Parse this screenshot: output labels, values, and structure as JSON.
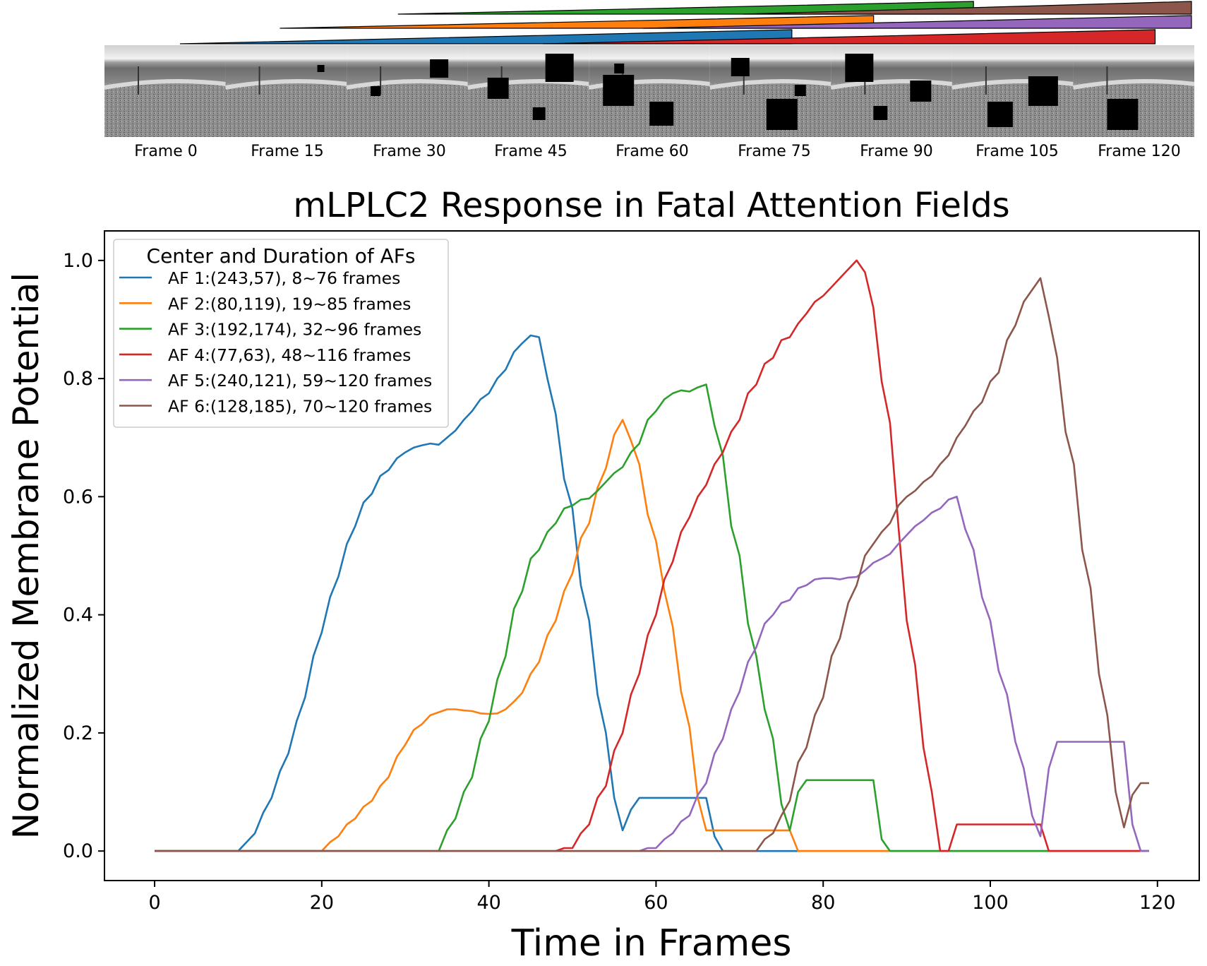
{
  "frames_strip": {
    "labels": [
      "Frame 0",
      "Frame 15",
      "Frame 30",
      "Frame 45",
      "Frame 60",
      "Frame 75",
      "Frame 90",
      "Frame 105",
      "Frame 120"
    ]
  },
  "chart_data": {
    "type": "line",
    "title": "mLPLC2 Response in Fatal Attention Fields",
    "xlabel": "Time in Frames",
    "ylabel": "Normalized Membrane Potential",
    "xlim": [
      -6,
      125
    ],
    "ylim": [
      -0.05,
      1.05
    ],
    "xticks": [
      0,
      20,
      40,
      60,
      80,
      100,
      120
    ],
    "yticks": [
      0.0,
      0.2,
      0.4,
      0.6,
      0.8,
      1.0
    ],
    "xtick_labels": [
      "0",
      "20",
      "40",
      "60",
      "80",
      "100",
      "120"
    ],
    "ytick_labels": [
      "0.0",
      "0.2",
      "0.4",
      "0.6",
      "0.8",
      "1.0"
    ],
    "legend": {
      "title": "Center and Duration of AFs",
      "position": "upper-left"
    },
    "series": [
      {
        "name": "AF 1:(243,57), 8~76 frames",
        "color": "#1f77b4",
        "points": [
          [
            0,
            0
          ],
          [
            10,
            0
          ],
          [
            11,
            0.015
          ],
          [
            12,
            0.03
          ],
          [
            13,
            0.065
          ],
          [
            14,
            0.09
          ],
          [
            15,
            0.135
          ],
          [
            16,
            0.165
          ],
          [
            17,
            0.22
          ],
          [
            18,
            0.26
          ],
          [
            19,
            0.33
          ],
          [
            20,
            0.37
          ],
          [
            21,
            0.43
          ],
          [
            22,
            0.465
          ],
          [
            23,
            0.52
          ],
          [
            24,
            0.55
          ],
          [
            25,
            0.59
          ],
          [
            26,
            0.605
          ],
          [
            27,
            0.635
          ],
          [
            28,
            0.645
          ],
          [
            29,
            0.665
          ],
          [
            30,
            0.675
          ],
          [
            31,
            0.683
          ],
          [
            32,
            0.687
          ],
          [
            33,
            0.69
          ],
          [
            34,
            0.688
          ],
          [
            35,
            0.7
          ],
          [
            36,
            0.712
          ],
          [
            37,
            0.73
          ],
          [
            38,
            0.745
          ],
          [
            39,
            0.765
          ],
          [
            40,
            0.775
          ],
          [
            41,
            0.8
          ],
          [
            42,
            0.815
          ],
          [
            43,
            0.845
          ],
          [
            44,
            0.86
          ],
          [
            45,
            0.873
          ],
          [
            46,
            0.87
          ],
          [
            47,
            0.8
          ],
          [
            48,
            0.74
          ],
          [
            49,
            0.63
          ],
          [
            50,
            0.58
          ],
          [
            51,
            0.45
          ],
          [
            52,
            0.39
          ],
          [
            53,
            0.265
          ],
          [
            54,
            0.2
          ],
          [
            55,
            0.09
          ],
          [
            56,
            0.035
          ],
          [
            57,
            0.07
          ],
          [
            58,
            0.09
          ],
          [
            66,
            0.09
          ],
          [
            67,
            0.025
          ],
          [
            68,
            0
          ],
          [
            119,
            0
          ]
        ]
      },
      {
        "name": "AF 2:(80,119), 19~85 frames",
        "color": "#ff7f0e",
        "points": [
          [
            0,
            0
          ],
          [
            20,
            0
          ],
          [
            21,
            0.015
          ],
          [
            22,
            0.025
          ],
          [
            23,
            0.045
          ],
          [
            24,
            0.055
          ],
          [
            25,
            0.075
          ],
          [
            26,
            0.085
          ],
          [
            27,
            0.11
          ],
          [
            28,
            0.125
          ],
          [
            29,
            0.16
          ],
          [
            30,
            0.18
          ],
          [
            31,
            0.205
          ],
          [
            32,
            0.215
          ],
          [
            33,
            0.23
          ],
          [
            34,
            0.235
          ],
          [
            35,
            0.24
          ],
          [
            36,
            0.24
          ],
          [
            37,
            0.238
          ],
          [
            38,
            0.237
          ],
          [
            39,
            0.233
          ],
          [
            40,
            0.232
          ],
          [
            41,
            0.233
          ],
          [
            42,
            0.24
          ],
          [
            43,
            0.253
          ],
          [
            44,
            0.268
          ],
          [
            45,
            0.3
          ],
          [
            46,
            0.32
          ],
          [
            47,
            0.365
          ],
          [
            48,
            0.39
          ],
          [
            49,
            0.44
          ],
          [
            50,
            0.47
          ],
          [
            51,
            0.53
          ],
          [
            52,
            0.555
          ],
          [
            53,
            0.615
          ],
          [
            54,
            0.648
          ],
          [
            55,
            0.705
          ],
          [
            56,
            0.73
          ],
          [
            57,
            0.695
          ],
          [
            58,
            0.655
          ],
          [
            59,
            0.57
          ],
          [
            60,
            0.525
          ],
          [
            61,
            0.44
          ],
          [
            62,
            0.38
          ],
          [
            63,
            0.27
          ],
          [
            64,
            0.21
          ],
          [
            65,
            0.09
          ],
          [
            66,
            0.035
          ],
          [
            76,
            0.035
          ],
          [
            77,
            0
          ],
          [
            119,
            0
          ]
        ]
      },
      {
        "name": "AF 3:(192,174), 32~96 frames",
        "color": "#2ca02c",
        "points": [
          [
            0,
            0
          ],
          [
            34,
            0
          ],
          [
            35,
            0.035
          ],
          [
            36,
            0.055
          ],
          [
            37,
            0.1
          ],
          [
            38,
            0.125
          ],
          [
            39,
            0.19
          ],
          [
            40,
            0.22
          ],
          [
            41,
            0.29
          ],
          [
            42,
            0.33
          ],
          [
            43,
            0.41
          ],
          [
            44,
            0.44
          ],
          [
            45,
            0.495
          ],
          [
            46,
            0.51
          ],
          [
            47,
            0.54
          ],
          [
            48,
            0.555
          ],
          [
            49,
            0.58
          ],
          [
            50,
            0.585
          ],
          [
            51,
            0.595
          ],
          [
            52,
            0.597
          ],
          [
            53,
            0.61
          ],
          [
            54,
            0.625
          ],
          [
            55,
            0.64
          ],
          [
            56,
            0.65
          ],
          [
            57,
            0.675
          ],
          [
            58,
            0.69
          ],
          [
            59,
            0.73
          ],
          [
            60,
            0.745
          ],
          [
            61,
            0.765
          ],
          [
            62,
            0.775
          ],
          [
            63,
            0.78
          ],
          [
            64,
            0.778
          ],
          [
            65,
            0.785
          ],
          [
            66,
            0.79
          ],
          [
            67,
            0.72
          ],
          [
            68,
            0.67
          ],
          [
            69,
            0.55
          ],
          [
            70,
            0.5
          ],
          [
            71,
            0.385
          ],
          [
            72,
            0.33
          ],
          [
            73,
            0.24
          ],
          [
            74,
            0.19
          ],
          [
            75,
            0.08
          ],
          [
            76,
            0.035
          ],
          [
            77,
            0.1
          ],
          [
            78,
            0.12
          ],
          [
            86,
            0.12
          ],
          [
            87,
            0.02
          ],
          [
            88,
            0
          ],
          [
            119,
            0
          ]
        ]
      },
      {
        "name": "AF 4:(77,63), 48~116 frames",
        "color": "#d62728",
        "points": [
          [
            0,
            0
          ],
          [
            48,
            0
          ],
          [
            49,
            0.005
          ],
          [
            50,
            0.005
          ],
          [
            51,
            0.03
          ],
          [
            52,
            0.045
          ],
          [
            53,
            0.09
          ],
          [
            54,
            0.11
          ],
          [
            55,
            0.17
          ],
          [
            56,
            0.2
          ],
          [
            57,
            0.265
          ],
          [
            58,
            0.3
          ],
          [
            59,
            0.365
          ],
          [
            60,
            0.4
          ],
          [
            61,
            0.46
          ],
          [
            62,
            0.49
          ],
          [
            63,
            0.54
          ],
          [
            64,
            0.565
          ],
          [
            65,
            0.6
          ],
          [
            66,
            0.62
          ],
          [
            67,
            0.655
          ],
          [
            68,
            0.675
          ],
          [
            69,
            0.71
          ],
          [
            70,
            0.73
          ],
          [
            71,
            0.775
          ],
          [
            72,
            0.79
          ],
          [
            73,
            0.825
          ],
          [
            74,
            0.835
          ],
          [
            75,
            0.865
          ],
          [
            76,
            0.87
          ],
          [
            77,
            0.893
          ],
          [
            78,
            0.91
          ],
          [
            79,
            0.93
          ],
          [
            80,
            0.94
          ],
          [
            81,
            0.955
          ],
          [
            82,
            0.97
          ],
          [
            83,
            0.985
          ],
          [
            84,
            1.0
          ],
          [
            85,
            0.98
          ],
          [
            86,
            0.92
          ],
          [
            87,
            0.795
          ],
          [
            88,
            0.725
          ],
          [
            89,
            0.55
          ],
          [
            90,
            0.39
          ],
          [
            91,
            0.315
          ],
          [
            92,
            0.175
          ],
          [
            93,
            0.1
          ],
          [
            94,
            0
          ],
          [
            95,
            0
          ],
          [
            96,
            0.045
          ],
          [
            106,
            0.045
          ],
          [
            107,
            0
          ],
          [
            119,
            0
          ]
        ]
      },
      {
        "name": "AF 5:(240,121), 59~120 frames",
        "color": "#9467bd",
        "points": [
          [
            0,
            0
          ],
          [
            58,
            0
          ],
          [
            59,
            0.005
          ],
          [
            60,
            0.005
          ],
          [
            61,
            0.02
          ],
          [
            62,
            0.03
          ],
          [
            63,
            0.05
          ],
          [
            64,
            0.06
          ],
          [
            65,
            0.095
          ],
          [
            66,
            0.115
          ],
          [
            67,
            0.165
          ],
          [
            68,
            0.19
          ],
          [
            69,
            0.24
          ],
          [
            70,
            0.27
          ],
          [
            71,
            0.32
          ],
          [
            72,
            0.345
          ],
          [
            73,
            0.385
          ],
          [
            74,
            0.4
          ],
          [
            75,
            0.42
          ],
          [
            76,
            0.425
          ],
          [
            77,
            0.445
          ],
          [
            78,
            0.45
          ],
          [
            79,
            0.46
          ],
          [
            80,
            0.462
          ],
          [
            81,
            0.462
          ],
          [
            82,
            0.46
          ],
          [
            83,
            0.463
          ],
          [
            84,
            0.464
          ],
          [
            85,
            0.475
          ],
          [
            86,
            0.488
          ],
          [
            87,
            0.495
          ],
          [
            88,
            0.503
          ],
          [
            89,
            0.52
          ],
          [
            90,
            0.535
          ],
          [
            91,
            0.55
          ],
          [
            92,
            0.56
          ],
          [
            93,
            0.573
          ],
          [
            94,
            0.58
          ],
          [
            95,
            0.595
          ],
          [
            96,
            0.6
          ],
          [
            97,
            0.545
          ],
          [
            98,
            0.51
          ],
          [
            99,
            0.43
          ],
          [
            100,
            0.39
          ],
          [
            101,
            0.305
          ],
          [
            102,
            0.265
          ],
          [
            103,
            0.185
          ],
          [
            104,
            0.14
          ],
          [
            105,
            0.06
          ],
          [
            106,
            0.025
          ],
          [
            107,
            0.14
          ],
          [
            108,
            0.185
          ],
          [
            116,
            0.185
          ],
          [
            117,
            0.045
          ],
          [
            118,
            0
          ],
          [
            119,
            0
          ]
        ]
      },
      {
        "name": "AF 6:(128,185), 70~120 frames",
        "color": "#8c564b",
        "points": [
          [
            0,
            0
          ],
          [
            72,
            0
          ],
          [
            73,
            0.02
          ],
          [
            74,
            0.03
          ],
          [
            75,
            0.06
          ],
          [
            76,
            0.085
          ],
          [
            77,
            0.15
          ],
          [
            78,
            0.175
          ],
          [
            79,
            0.23
          ],
          [
            80,
            0.26
          ],
          [
            81,
            0.33
          ],
          [
            82,
            0.36
          ],
          [
            83,
            0.42
          ],
          [
            84,
            0.45
          ],
          [
            85,
            0.5
          ],
          [
            86,
            0.52
          ],
          [
            87,
            0.54
          ],
          [
            88,
            0.555
          ],
          [
            89,
            0.585
          ],
          [
            90,
            0.6
          ],
          [
            91,
            0.61
          ],
          [
            92,
            0.625
          ],
          [
            93,
            0.635
          ],
          [
            94,
            0.655
          ],
          [
            95,
            0.67
          ],
          [
            96,
            0.7
          ],
          [
            97,
            0.72
          ],
          [
            98,
            0.745
          ],
          [
            99,
            0.76
          ],
          [
            100,
            0.795
          ],
          [
            101,
            0.81
          ],
          [
            102,
            0.865
          ],
          [
            103,
            0.89
          ],
          [
            104,
            0.93
          ],
          [
            105,
            0.95
          ],
          [
            106,
            0.97
          ],
          [
            107,
            0.905
          ],
          [
            108,
            0.835
          ],
          [
            109,
            0.71
          ],
          [
            110,
            0.655
          ],
          [
            111,
            0.51
          ],
          [
            112,
            0.445
          ],
          [
            113,
            0.3
          ],
          [
            114,
            0.23
          ],
          [
            115,
            0.1
          ],
          [
            116,
            0.04
          ],
          [
            117,
            0.095
          ],
          [
            118,
            0.115
          ],
          [
            119,
            0.115
          ]
        ]
      }
    ]
  }
}
